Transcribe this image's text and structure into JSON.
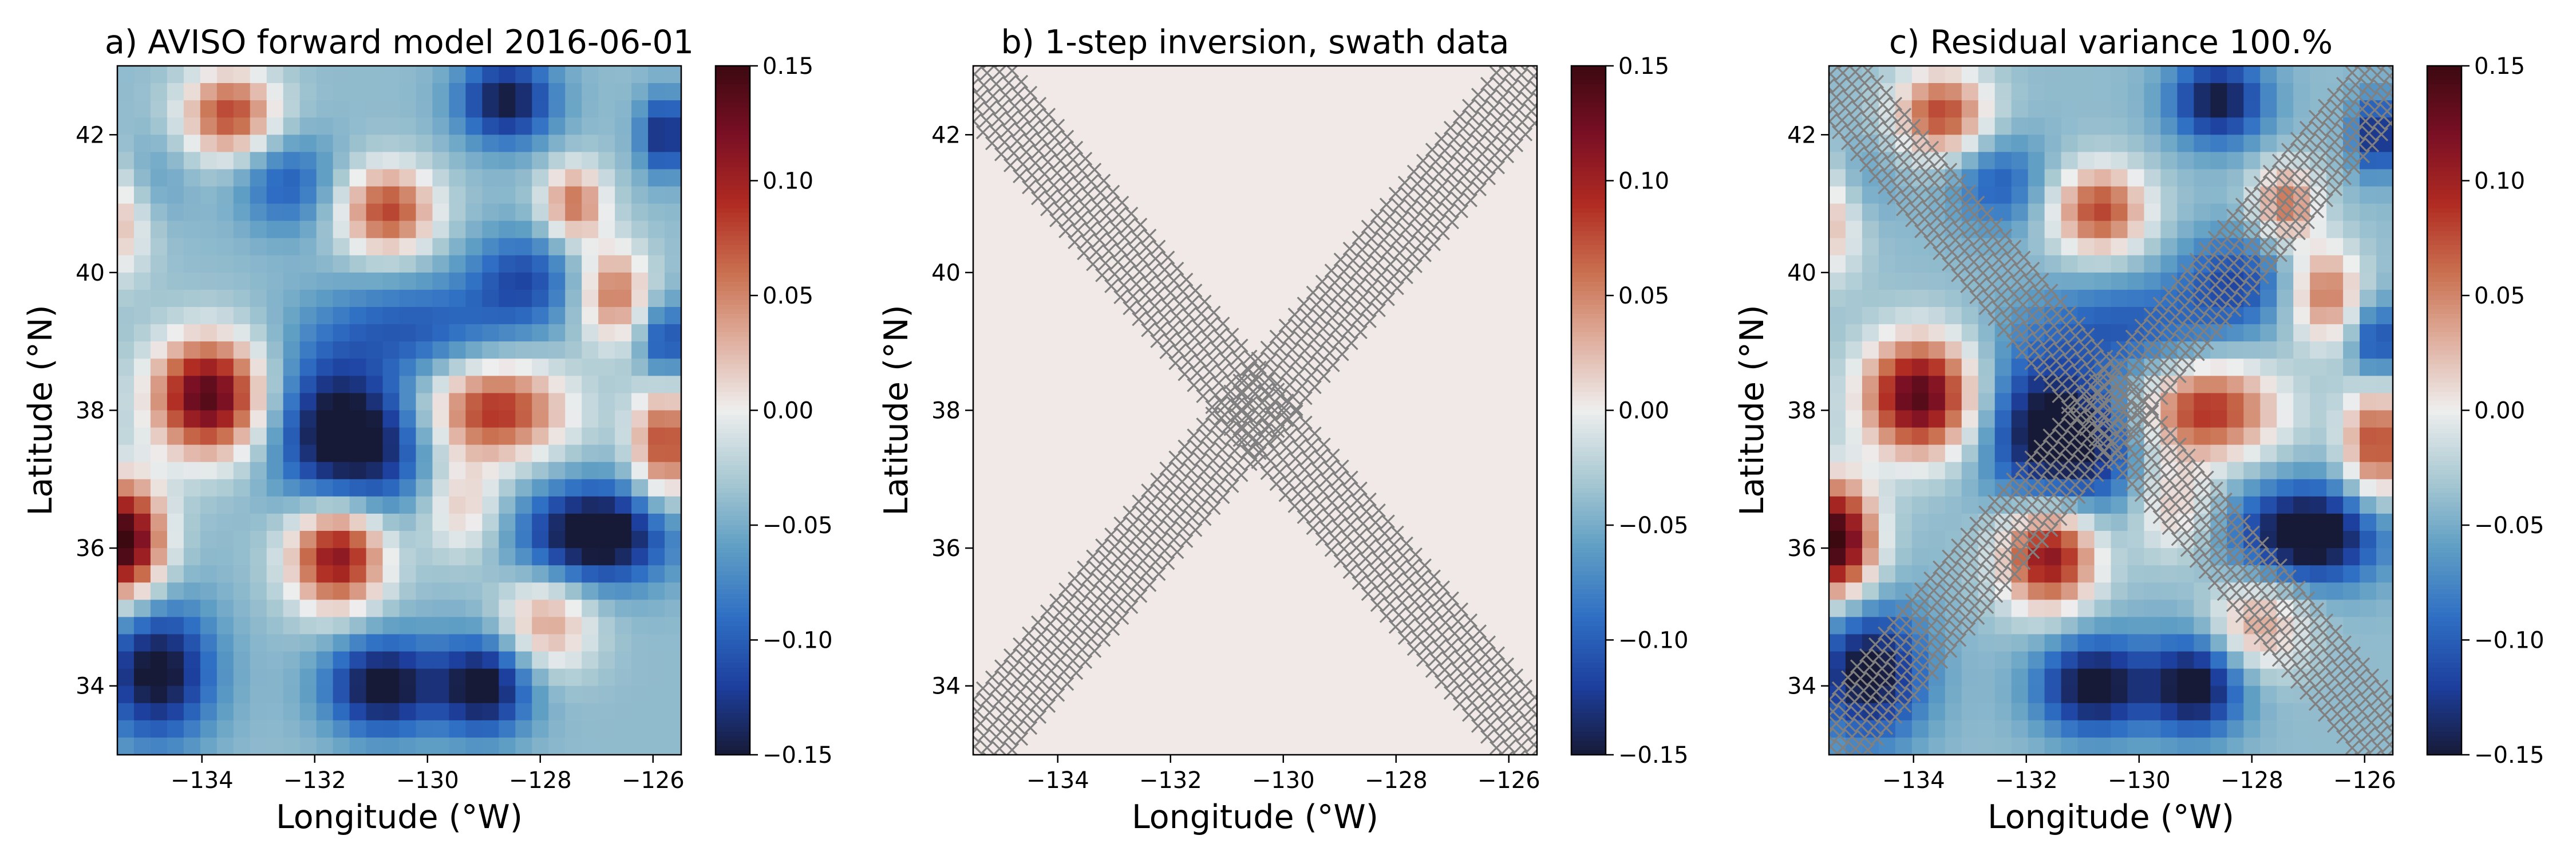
{
  "figure": {
    "colormap": {
      "name": "balance",
      "stops": [
        "#171a37",
        "#1d3f9e",
        "#2f6fc4",
        "#5f9ec4",
        "#a9c9d2",
        "#eeeeee",
        "#e0b0a0",
        "#c9704f",
        "#b02b22",
        "#7a0f24",
        "#3c0911"
      ],
      "vmin": -0.15,
      "vmax": 0.15
    },
    "panels": [
      {
        "title": "a) AVISO forward model 2016-06-01",
        "xlabel": "Longitude (°W)",
        "ylabel": "Latitude (°N)",
        "show_field": true,
        "show_swath": false
      },
      {
        "title": "b) 1-step inversion, swath data",
        "xlabel": "Longitude (°W)",
        "ylabel": "Latitude (°N)",
        "show_field": false,
        "show_swath": true
      },
      {
        "title": "c) Residual variance 100.%",
        "xlabel": "Longitude (°W)",
        "ylabel": "Latitude (°N)",
        "show_field": true,
        "show_swath": true
      }
    ]
  },
  "chart_data": {
    "type": "heatmap",
    "xlim": [
      -135.5,
      -125.5
    ],
    "ylim": [
      33,
      43
    ],
    "xticks": [
      -134,
      -132,
      -130,
      -128,
      -126
    ],
    "xtick_labels": [
      "−134",
      "−132",
      "−130",
      "−128",
      "−126"
    ],
    "yticks": [
      34,
      36,
      38,
      40,
      42
    ],
    "ytick_labels": [
      "34",
      "36",
      "38",
      "40",
      "42"
    ],
    "colorbar_ticks": [
      -0.15,
      -0.1,
      -0.05,
      0.0,
      0.05,
      0.1,
      0.15
    ],
    "colorbar_tick_labels": [
      "−0.15",
      "−0.10",
      "−0.05",
      "0.00",
      "0.05",
      "0.10",
      "0.15"
    ],
    "field_background": -0.04,
    "field_features": [
      {
        "lon": -133.5,
        "lat": 42.3,
        "amp": 0.12,
        "sx": 0.6,
        "sy": 0.45
      },
      {
        "lon": -130.7,
        "lat": 40.9,
        "amp": 0.12,
        "sx": 0.6,
        "sy": 0.45
      },
      {
        "lon": -128.8,
        "lat": 38.0,
        "amp": 0.13,
        "sx": 0.9,
        "sy": 0.5
      },
      {
        "lon": -133.9,
        "lat": 38.2,
        "amp": 0.18,
        "sx": 0.7,
        "sy": 0.6
      },
      {
        "lon": -135.4,
        "lat": 36.1,
        "amp": 0.2,
        "sx": 0.5,
        "sy": 0.6
      },
      {
        "lon": -131.6,
        "lat": 35.9,
        "amp": 0.16,
        "sx": 0.6,
        "sy": 0.55
      },
      {
        "lon": -127.9,
        "lat": 34.9,
        "amp": 0.08,
        "sx": 0.6,
        "sy": 0.5
      },
      {
        "lon": -126.7,
        "lat": 39.7,
        "amp": 0.1,
        "sx": 0.45,
        "sy": 0.5
      },
      {
        "lon": -135.6,
        "lat": 40.8,
        "amp": 0.08,
        "sx": 0.5,
        "sy": 0.6
      },
      {
        "lon": -125.8,
        "lat": 37.5,
        "amp": 0.12,
        "sx": 0.4,
        "sy": 0.6
      },
      {
        "lon": -127.4,
        "lat": 41.0,
        "amp": 0.1,
        "sx": 0.4,
        "sy": 0.4
      },
      {
        "lon": -129.4,
        "lat": 36.6,
        "amp": 0.06,
        "sx": 0.5,
        "sy": 0.5
      },
      {
        "lon": -128.6,
        "lat": 42.5,
        "amp": -0.11,
        "sx": 0.6,
        "sy": 0.45
      },
      {
        "lon": -130.8,
        "lat": 37.5,
        "amp": -0.08,
        "sx": 0.7,
        "sy": 0.7
      },
      {
        "lon": -131.8,
        "lat": 37.7,
        "amp": -0.1,
        "sx": 0.7,
        "sy": 0.8
      },
      {
        "lon": -127.0,
        "lat": 36.2,
        "amp": -0.14,
        "sx": 0.9,
        "sy": 0.5
      },
      {
        "lon": -134.8,
        "lat": 34.2,
        "amp": -0.12,
        "sx": 0.7,
        "sy": 0.7
      },
      {
        "lon": -130.8,
        "lat": 34.0,
        "amp": -0.12,
        "sx": 0.7,
        "sy": 0.5
      },
      {
        "lon": -129.0,
        "lat": 34.0,
        "amp": -0.12,
        "sx": 0.6,
        "sy": 0.5
      },
      {
        "lon": -132.5,
        "lat": 41.3,
        "amp": -0.06,
        "sx": 0.6,
        "sy": 0.5
      },
      {
        "lon": -128.3,
        "lat": 39.9,
        "amp": -0.07,
        "sx": 0.7,
        "sy": 0.5
      },
      {
        "lon": -130.2,
        "lat": 39.2,
        "amp": -0.06,
        "sx": 1.2,
        "sy": 0.5
      },
      {
        "lon": -135.0,
        "lat": 41.3,
        "amp": -0.03,
        "sx": 0.5,
        "sy": 0.5
      },
      {
        "lon": -125.8,
        "lat": 42.0,
        "amp": -0.1,
        "sx": 0.3,
        "sy": 0.4
      },
      {
        "lon": -125.8,
        "lat": 39.0,
        "amp": -0.08,
        "sx": 0.3,
        "sy": 0.4
      }
    ],
    "swaths": [
      {
        "lon_start": -135.8,
        "lat_start": 43.2,
        "lon_end": -125.2,
        "lat_end": 32.8
      },
      {
        "lon_start": -135.8,
        "lat_start": 32.8,
        "lon_end": -125.2,
        "lat_end": 43.2
      }
    ],
    "swath_marker": "x",
    "swath_color": "#808080",
    "empty_field_color": "#f0e9e7"
  }
}
